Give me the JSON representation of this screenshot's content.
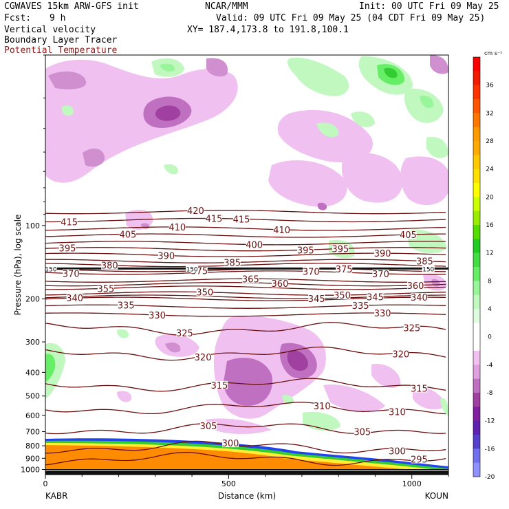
{
  "header": {
    "model": "CGWAVES 15km ARW-GFS init",
    "fcst_label": "Fcst:",
    "fcst_value": "9 h",
    "field1": "Vertical velocity",
    "field2": "Boundary Layer Tracer",
    "field3": "Potential Temperature",
    "center": "NCAR/MMM",
    "init": "Init: 00 UTC Fri 09 May 25",
    "valid": "Valid: 09 UTC Fri 09 May 25 (04 CDT Fri 09 May 25)",
    "xy": "XY= 187.4,173.8 to 191.8,100.1"
  },
  "colors": {
    "theta": "#6b1010",
    "theta_bold": "#111111",
    "field3_text": "#8b1a1a",
    "tracer_orange": "#ff8c00",
    "tracer_yellow": "#ffee33",
    "tracer_green": "#33cc33",
    "tracer_blue": "#2244ee"
  },
  "chart_data": {
    "type": "contour",
    "xlabel": "Distance (km)",
    "ylabel": "Pressure (hPa), log scale",
    "x_ticks": [
      "0",
      "500",
      "1000"
    ],
    "x_tick_values": [
      0,
      500,
      1000
    ],
    "xlim": [
      0,
      1100
    ],
    "y_ticks": [
      "100",
      "200",
      "300",
      "400",
      "500",
      "600",
      "700",
      "800",
      "900",
      "1000"
    ],
    "y_tick_values": [
      100,
      200,
      300,
      400,
      500,
      600,
      700,
      800,
      900,
      1000
    ],
    "ylim": [
      20,
      1050
    ],
    "left_station": "KABR",
    "right_station": "KOUN",
    "colorbar_unit": "cm s⁻¹",
    "colorbar": [
      {
        "label": "",
        "color": "#ff0000"
      },
      {
        "label": "36",
        "color": "#f21b00"
      },
      {
        "label": "",
        "color": "#ff3300"
      },
      {
        "label": "32",
        "color": "#ff5500"
      },
      {
        "label": "",
        "color": "#ff7700"
      },
      {
        "label": "28",
        "color": "#ff9900"
      },
      {
        "label": "",
        "color": "#ffaa00"
      },
      {
        "label": "24",
        "color": "#ffc800"
      },
      {
        "label": "",
        "color": "#ffe000"
      },
      {
        "label": "20",
        "color": "#ffff00"
      },
      {
        "label": "",
        "color": "#ccff00"
      },
      {
        "label": "16",
        "color": "#99ee00"
      },
      {
        "label": "",
        "color": "#55dd00"
      },
      {
        "label": "12",
        "color": "#22cc22"
      },
      {
        "label": "",
        "color": "#44dd44"
      },
      {
        "label": "8",
        "color": "#66ee66"
      },
      {
        "label": "",
        "color": "#99f599"
      },
      {
        "label": "4",
        "color": "#c0f8c0"
      },
      {
        "label": "",
        "color": "#e0fce0"
      },
      {
        "label": "0",
        "color": "#ffffff"
      },
      {
        "label": "",
        "color": "#ffffff"
      },
      {
        "label": "-4",
        "color": "#f0c0f0"
      },
      {
        "label": "",
        "color": "#e0a0e0"
      },
      {
        "label": "-8",
        "color": "#c070c0"
      },
      {
        "label": "",
        "color": "#a040a0"
      },
      {
        "label": "-12",
        "color": "#8020a0"
      },
      {
        "label": "",
        "color": "#6020b0"
      },
      {
        "label": "-16",
        "color": "#5540cc"
      },
      {
        "label": "",
        "color": "#7070ee"
      },
      {
        "label": "-20",
        "color": "#9090ff"
      }
    ],
    "theta_lines": [
      {
        "value": 420,
        "p": 88,
        "labels": [
          {
            "text": "420",
            "x": 410
          }
        ]
      },
      {
        "value": 415,
        "p": 95,
        "labels": [
          {
            "text": "415",
            "x": 65
          },
          {
            "text": "415",
            "x": 460
          },
          {
            "text": "415",
            "x": 535
          }
        ]
      },
      {
        "value": 410,
        "p": 103,
        "labels": [
          {
            "text": "410",
            "x": 360
          },
          {
            "text": "410",
            "x": 645
          }
        ]
      },
      {
        "value": 405,
        "p": 110,
        "labels": [
          {
            "text": "405",
            "x": 225
          },
          {
            "text": "405",
            "x": 990
          }
        ]
      },
      {
        "value": 400,
        "p": 118,
        "labels": [
          {
            "text": "400",
            "x": 570
          }
        ]
      },
      {
        "value": 395,
        "p": 125,
        "labels": [
          {
            "text": "395",
            "x": 60
          },
          {
            "text": "395",
            "x": 710
          },
          {
            "text": "395",
            "x": 805
          }
        ]
      },
      {
        "value": 390,
        "p": 132,
        "labels": [
          {
            "text": "390",
            "x": 330
          },
          {
            "text": "390",
            "x": 920
          }
        ]
      },
      {
        "value": 385,
        "p": 140,
        "labels": [
          {
            "text": "385",
            "x": 510
          },
          {
            "text": "385",
            "x": 1035
          }
        ]
      },
      {
        "value": 380,
        "p": 145,
        "labels": [
          {
            "text": "380",
            "x": 175
          }
        ]
      },
      {
        "value": 375,
        "p": 152,
        "labels": [
          {
            "text": "375",
            "x": 420
          },
          {
            "text": "375",
            "x": 815
          }
        ]
      },
      {
        "value": 370,
        "p": 156,
        "labels": [
          {
            "text": "370",
            "x": 70
          },
          {
            "text": "370",
            "x": 725
          },
          {
            "text": "370",
            "x": 915
          }
        ]
      },
      {
        "value": 365,
        "p": 168,
        "labels": [
          {
            "text": "365",
            "x": 560
          }
        ]
      },
      {
        "value": 360,
        "p": 174,
        "labels": [
          {
            "text": "360",
            "x": 640
          },
          {
            "text": "360",
            "x": 1010
          }
        ]
      },
      {
        "value": 355,
        "p": 180,
        "labels": [
          {
            "text": "355",
            "x": 165
          }
        ]
      },
      {
        "value": 350,
        "p": 190,
        "labels": [
          {
            "text": "350",
            "x": 435
          },
          {
            "text": "350",
            "x": 810
          }
        ]
      },
      {
        "value": 345,
        "p": 196,
        "labels": [
          {
            "text": "345",
            "x": 740
          },
          {
            "text": "345",
            "x": 900
          }
        ]
      },
      {
        "value": 340,
        "p": 200,
        "labels": [
          {
            "text": "340",
            "x": 80
          },
          {
            "text": "340",
            "x": 1020
          }
        ]
      },
      {
        "value": 335,
        "p": 215,
        "labels": [
          {
            "text": "335",
            "x": 220
          },
          {
            "text": "335",
            "x": 860
          }
        ]
      },
      {
        "value": 330,
        "p": 232,
        "labels": [
          {
            "text": "330",
            "x": 305
          },
          {
            "text": "330",
            "x": 920
          }
        ]
      },
      {
        "value": 325,
        "p": 265,
        "labels": [
          {
            "text": "325",
            "x": 380
          },
          {
            "text": "325",
            "x": 1000
          }
        ]
      },
      {
        "value": 320,
        "p": 335,
        "labels": [
          {
            "text": "320",
            "x": 430
          },
          {
            "text": "320",
            "x": 970
          }
        ]
      },
      {
        "value": 315,
        "p": 450,
        "labels": [
          {
            "text": "315",
            "x": 475
          },
          {
            "text": "315",
            "x": 1020
          }
        ]
      },
      {
        "value": 310,
        "p": 560,
        "labels": [
          {
            "text": "310",
            "x": 755
          },
          {
            "text": "310",
            "x": 960
          }
        ]
      },
      {
        "value": 305,
        "p": 680,
        "labels": [
          {
            "text": "305",
            "x": 445
          },
          {
            "text": "305",
            "x": 865
          }
        ]
      },
      {
        "value": 300,
        "p": 810,
        "labels": [
          {
            "text": "300",
            "x": 505
          },
          {
            "text": "300",
            "x": 960
          }
        ]
      },
      {
        "value": 295,
        "p": 905,
        "labels": [
          {
            "text": "295",
            "x": 1020
          }
        ]
      }
    ],
    "tropopause_labels": [
      {
        "text": "150",
        "x": 5
      },
      {
        "text": "150",
        "x": 400
      },
      {
        "text": "150",
        "x": 1045
      }
    ]
  }
}
